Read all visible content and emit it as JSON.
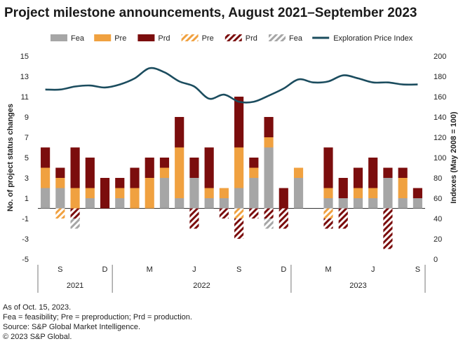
{
  "chart_data": {
    "type": "bar",
    "title": "Project milestone announcements, August 2021–September 2023",
    "ylabel": "No. of project status changes",
    "y2label": "Indexes (May 2008 = 100)",
    "ylim": [
      -5,
      15
    ],
    "yticks": [
      -5,
      -3,
      -1,
      1,
      3,
      5,
      7,
      9,
      11,
      13,
      15
    ],
    "ytick_labels": [
      "-5",
      "-3",
      "-1",
      "1",
      "3",
      "5",
      "7",
      "9",
      "11",
      "13",
      "15"
    ],
    "y2lim": [
      0,
      200
    ],
    "y2ticks": [
      0,
      20,
      40,
      60,
      80,
      100,
      120,
      140,
      160,
      180,
      200
    ],
    "y2tick_labels": [
      "0",
      "20",
      "40",
      "60",
      "80",
      "100",
      "120",
      "140",
      "160",
      "180",
      "200"
    ],
    "legend": [
      {
        "label": "Fea",
        "kind": "solid",
        "color": "#a6a6a6"
      },
      {
        "label": "Pre",
        "kind": "solid",
        "color": "#f0a140"
      },
      {
        "label": "Prd",
        "kind": "solid",
        "color": "#7b0d0d"
      },
      {
        "label": "Pre",
        "kind": "hatch",
        "color": "#f0a140"
      },
      {
        "label": "Prd",
        "kind": "hatch",
        "color": "#7b0d0d"
      },
      {
        "label": "Fea",
        "kind": "hatch",
        "color": "#a6a6a6"
      },
      {
        "label": "Exploration Price Index",
        "kind": "line",
        "color": "#1b4c5e"
      }
    ],
    "months": [
      "2021-08",
      "2021-09",
      "2021-10",
      "2021-11",
      "2021-12",
      "2022-01",
      "2022-02",
      "2022-03",
      "2022-04",
      "2022-05",
      "2022-06",
      "2022-07",
      "2022-08",
      "2022-09",
      "2022-10",
      "2022-11",
      "2022-12",
      "2023-01",
      "2023-02",
      "2023-03",
      "2023-04",
      "2023-05",
      "2023-06",
      "2023-07",
      "2023-08",
      "2023-09"
    ],
    "month_labels": [
      {
        "index": 1,
        "label": "S"
      },
      {
        "index": 4,
        "label": "D"
      },
      {
        "index": 7,
        "label": "M"
      },
      {
        "index": 10,
        "label": "J"
      },
      {
        "index": 13,
        "label": "S"
      },
      {
        "index": 16,
        "label": "D"
      },
      {
        "index": 19,
        "label": "M"
      },
      {
        "index": 22,
        "label": "J"
      },
      {
        "index": 25,
        "label": "S"
      }
    ],
    "year_groups": [
      {
        "label": "2021",
        "start": 0,
        "end": 4
      },
      {
        "label": "2022",
        "start": 5,
        "end": 16
      },
      {
        "label": "2023",
        "start": 17,
        "end": 25
      }
    ],
    "series": [
      {
        "name": "Fea",
        "color": "#a6a6a6",
        "values": [
          2,
          2,
          0,
          1,
          0,
          1,
          0,
          0,
          3,
          1,
          3,
          1,
          1,
          2,
          3,
          6,
          0,
          3,
          0,
          1,
          1,
          1,
          1,
          3,
          1,
          1
        ]
      },
      {
        "name": "Pre",
        "color": "#f0a140",
        "values": [
          2,
          1,
          2,
          1,
          0,
          1,
          2,
          3,
          1,
          5,
          0,
          1,
          1,
          4,
          1,
          1,
          0,
          1,
          0,
          1,
          0,
          1,
          1,
          0,
          2,
          0
        ]
      },
      {
        "name": "Prd",
        "color": "#7b0d0d",
        "values": [
          2,
          1,
          4,
          3,
          3,
          1,
          2,
          2,
          1,
          3,
          2,
          4,
          0,
          5,
          1,
          2,
          2,
          0,
          0,
          4,
          2,
          2,
          3,
          1,
          1,
          1
        ]
      },
      {
        "name": "Pre (negative)",
        "color": "#f0a140",
        "values": [
          0,
          -1,
          0,
          0,
          0,
          0,
          0,
          0,
          0,
          0,
          0,
          0,
          0,
          -1,
          0,
          0,
          0,
          0,
          0,
          -1,
          0,
          0,
          0,
          0,
          0,
          0
        ]
      },
      {
        "name": "Prd (negative)",
        "color": "#7b0d0d",
        "values": [
          0,
          0,
          -1,
          0,
          0,
          0,
          0,
          0,
          0,
          0,
          -2,
          0,
          -1,
          -2,
          -1,
          -1,
          -2,
          0,
          0,
          -1,
          -2,
          0,
          0,
          -4,
          0,
          0
        ]
      },
      {
        "name": "Fea (negative)",
        "color": "#a6a6a6",
        "values": [
          0,
          0,
          -1,
          0,
          0,
          0,
          0,
          0,
          0,
          0,
          0,
          0,
          0,
          0,
          0,
          -1,
          0,
          0,
          0,
          0,
          0,
          0,
          0,
          0,
          0,
          0
        ]
      }
    ],
    "line_series": {
      "name": "Exploration Price Index",
      "color": "#1b4c5e",
      "x": [
        0,
        1,
        2,
        3,
        4,
        5,
        6,
        7,
        8,
        9,
        10,
        11,
        12,
        13,
        14,
        15,
        16,
        17,
        18,
        19,
        20,
        21,
        22,
        23,
        24,
        25
      ],
      "values": [
        167,
        167,
        170,
        171,
        169,
        172,
        178,
        188,
        184,
        175,
        170,
        158,
        162,
        155,
        155,
        161,
        168,
        177,
        174,
        175,
        181,
        178,
        174,
        174,
        172,
        172
      ]
    }
  },
  "footnotes": {
    "line1": "As of Oct. 15, 2023.",
    "line2": "Fea = feasibility; Pre = preproduction; Prd = production.",
    "line3": "Source: S&P Global Market Intelligence.",
    "line4": "© 2023 S&P Global."
  }
}
